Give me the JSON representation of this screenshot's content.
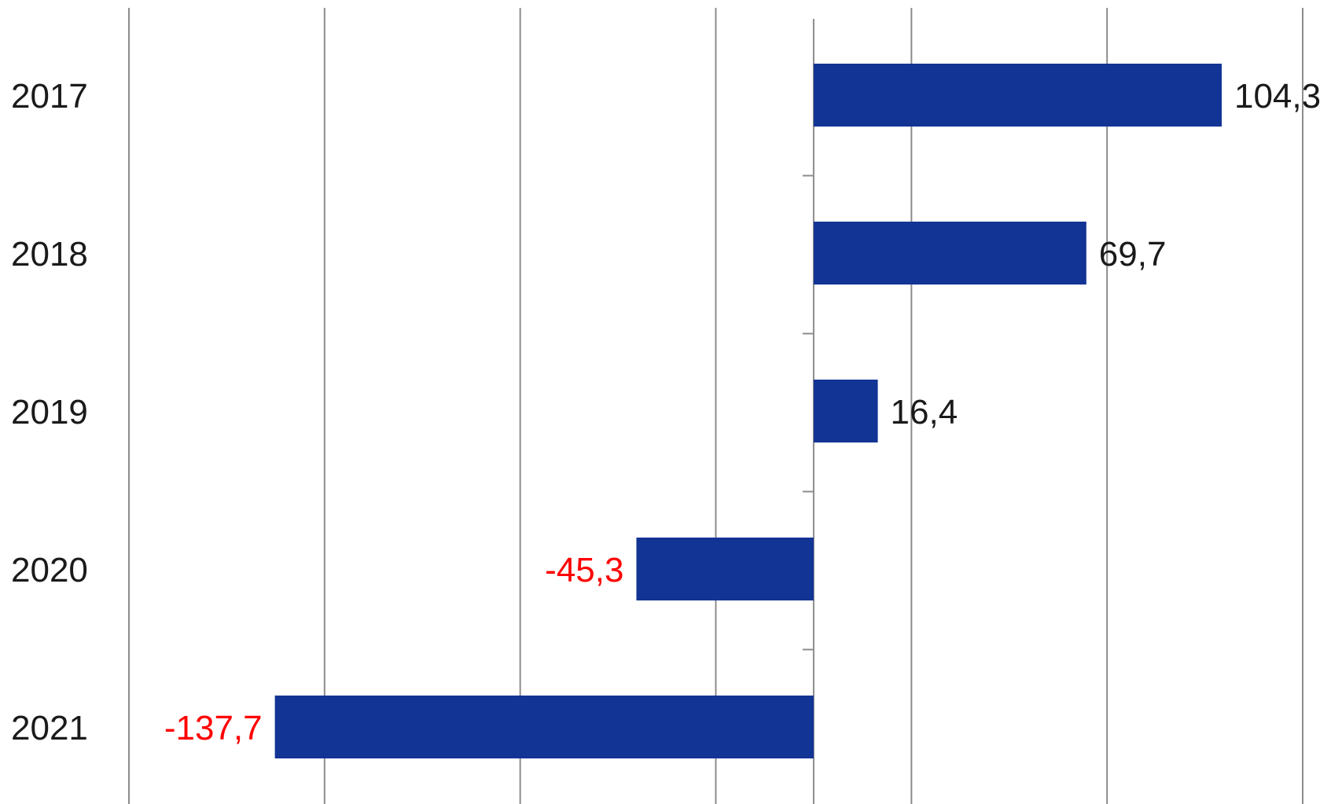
{
  "chart_data": {
    "type": "bar",
    "orientation": "horizontal",
    "categories": [
      "2017",
      "2018",
      "2019",
      "2020",
      "2021"
    ],
    "values": [
      104.3,
      69.7,
      16.4,
      -45.3,
      -137.7
    ],
    "value_labels": [
      "104,3",
      "69,7",
      "16,4",
      "-45,3",
      "-137,7"
    ],
    "title": "",
    "xlabel": "",
    "ylabel": "",
    "xlim": [
      -175,
      125
    ],
    "x_gridlines": [
      -175,
      -125,
      -75,
      -25,
      25,
      75,
      125
    ],
    "grid": true,
    "bar_color": "#123494",
    "positive_label_color": "#1a1a1a",
    "negative_label_color": "#ff0000"
  }
}
